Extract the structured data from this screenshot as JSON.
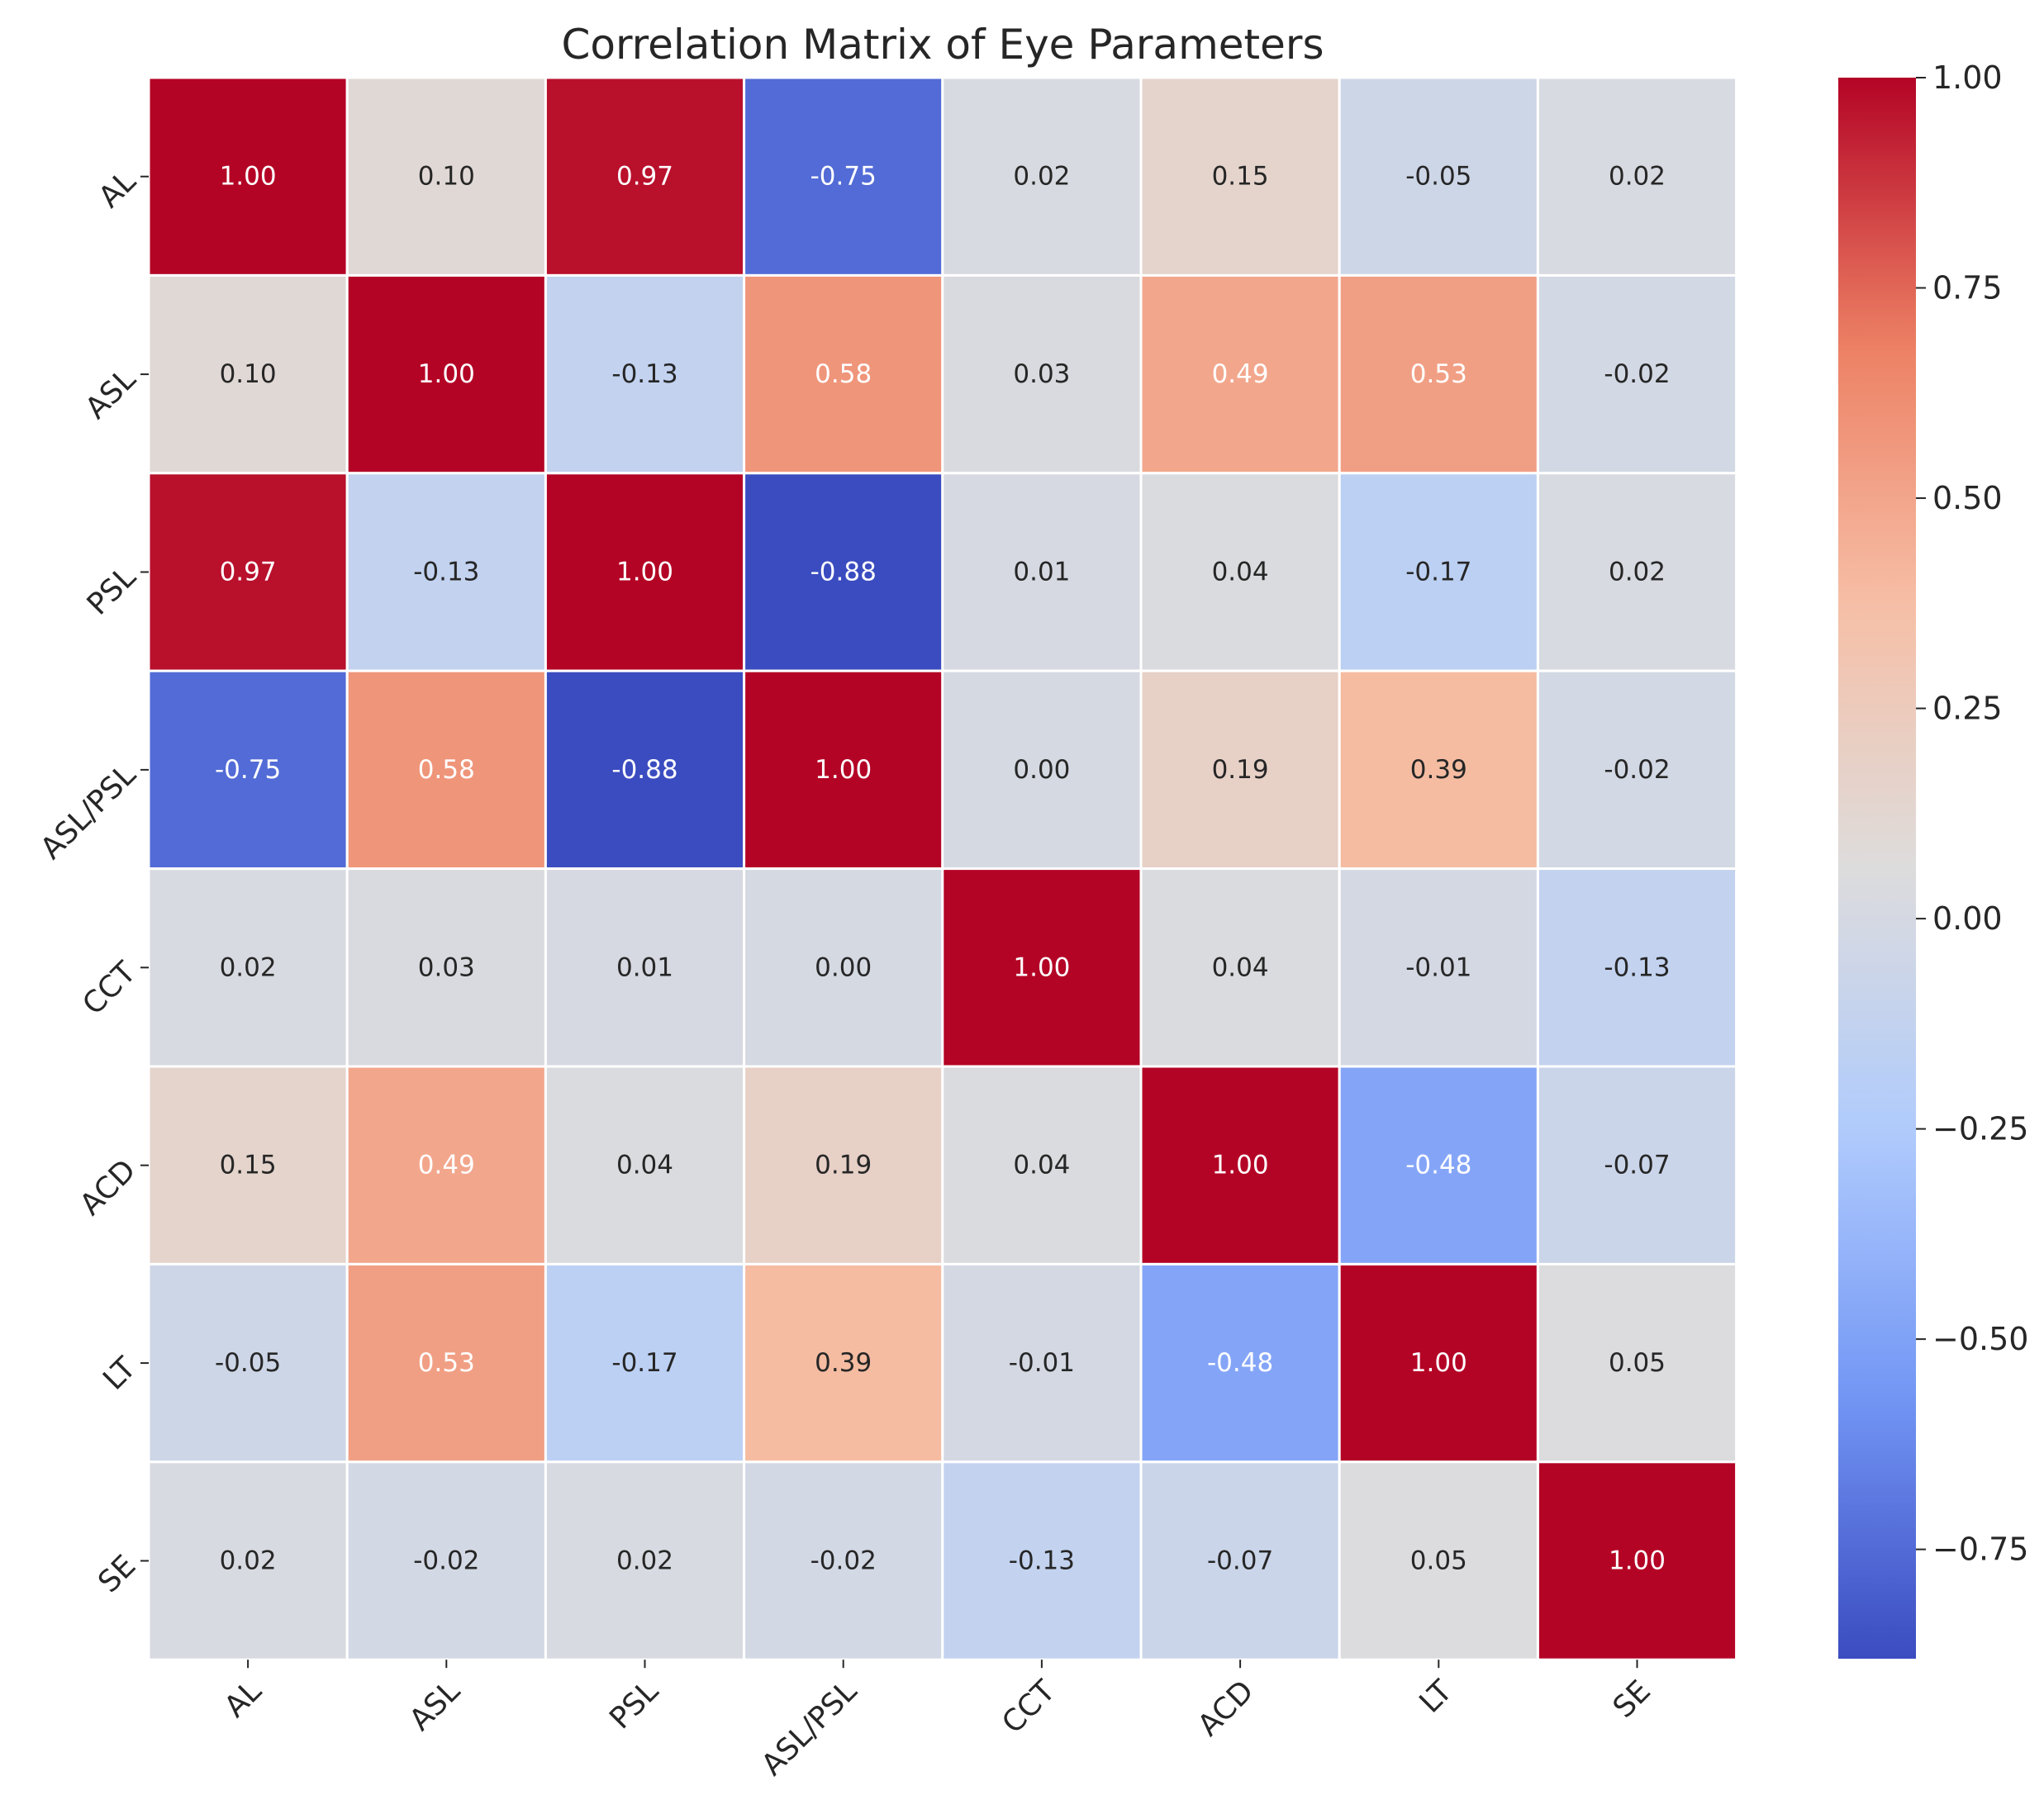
{
  "chart_data": {
    "type": "heatmap",
    "title": "Correlation Matrix of Eye Parameters",
    "xlabel": "",
    "ylabel": "",
    "rows": [
      "AL",
      "ASL",
      "PSL",
      "ASL/PSL",
      "CCT",
      "ACD",
      "LT",
      "SE"
    ],
    "columns": [
      "AL",
      "ASL",
      "PSL",
      "ASL/PSL",
      "CCT",
      "ACD",
      "LT",
      "SE"
    ],
    "values": [
      [
        1.0,
        0.1,
        0.97,
        -0.75,
        0.02,
        0.15,
        -0.05,
        0.02
      ],
      [
        0.1,
        1.0,
        -0.13,
        0.58,
        0.03,
        0.49,
        0.53,
        -0.02
      ],
      [
        0.97,
        -0.13,
        1.0,
        -0.88,
        0.01,
        0.04,
        -0.17,
        0.02
      ],
      [
        -0.75,
        0.58,
        -0.88,
        1.0,
        0.0,
        0.19,
        0.39,
        -0.02
      ],
      [
        0.02,
        0.03,
        0.01,
        0.0,
        1.0,
        0.04,
        -0.01,
        -0.13
      ],
      [
        0.15,
        0.49,
        0.04,
        0.19,
        0.04,
        1.0,
        -0.48,
        -0.07
      ],
      [
        -0.05,
        0.53,
        -0.17,
        0.39,
        -0.01,
        -0.48,
        1.0,
        0.05
      ],
      [
        0.02,
        -0.02,
        0.02,
        -0.02,
        -0.13,
        -0.07,
        0.05,
        1.0
      ]
    ],
    "value_format": "0.00",
    "colormap": "coolwarm",
    "colorbar": {
      "range": [
        -0.88,
        1.0
      ],
      "ticks": [
        1.0,
        0.75,
        0.5,
        0.25,
        0.0,
        -0.25,
        -0.5,
        -0.75
      ],
      "tick_labels": [
        "1.00",
        "0.75",
        "0.50",
        "0.25",
        "0.00",
        "−0.25",
        "−0.50",
        "−0.75"
      ]
    },
    "colors": {
      "cmap_stops": [
        "#3b4cc0",
        "#7396f5",
        "#b0cbfc",
        "#dddcdc",
        "#f6bfa6",
        "#ec7f63",
        "#b40426"
      ],
      "diagonal": "#b40426",
      "grid_line": "#ffffff",
      "dark_text": "#262626",
      "light_text": "#ffffff"
    },
    "grid": true,
    "legend": "colorbar-right"
  }
}
